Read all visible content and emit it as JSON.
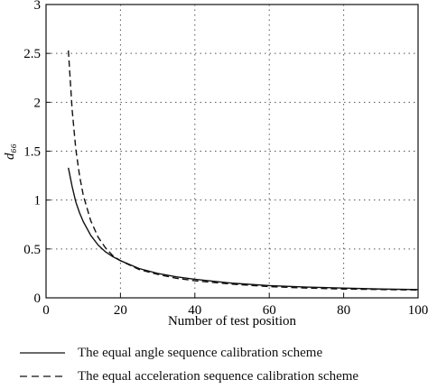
{
  "chart_data": {
    "type": "line",
    "xlabel": "Number of test position",
    "ylabel": "d₆₆",
    "xlim": [
      0,
      100
    ],
    "ylim": [
      0,
      3
    ],
    "x_ticks": [
      0,
      20,
      40,
      60,
      80,
      100
    ],
    "y_ticks": [
      0,
      0.5,
      1,
      1.5,
      2,
      2.5,
      3
    ],
    "x_tick_labels": [
      "0",
      "20",
      "40",
      "60",
      "80",
      "100"
    ],
    "y_tick_labels": [
      "0",
      "0.5",
      "1",
      "1.5",
      "2",
      "2.5",
      "3"
    ],
    "grid": true,
    "grid_style": "dotted",
    "legend_placement": "below",
    "series": [
      {
        "name": "The equal angle sequence calibration scheme",
        "line_style": "solid",
        "color": "#111111",
        "x": [
          6,
          7,
          8,
          9,
          10,
          12,
          14,
          16,
          18,
          20,
          25,
          30,
          35,
          40,
          50,
          60,
          70,
          80,
          90,
          100
        ],
        "y": [
          1.33,
          1.14,
          0.98,
          0.87,
          0.78,
          0.64,
          0.54,
          0.47,
          0.42,
          0.38,
          0.3,
          0.25,
          0.215,
          0.19,
          0.15,
          0.125,
          0.11,
          0.1,
          0.09,
          0.085
        ]
      },
      {
        "name": "The equal acceleration sequence calibration scheme",
        "line_style": "dashed",
        "color": "#111111",
        "x": [
          6,
          7,
          8,
          9,
          10,
          12,
          14,
          16,
          18,
          20,
          25,
          30,
          35,
          40,
          50,
          60,
          70,
          80,
          90,
          100
        ],
        "y": [
          2.53,
          1.93,
          1.52,
          1.25,
          1.05,
          0.79,
          0.62,
          0.51,
          0.43,
          0.38,
          0.29,
          0.24,
          0.2,
          0.175,
          0.14,
          0.115,
          0.1,
          0.09,
          0.085,
          0.08
        ]
      }
    ]
  }
}
